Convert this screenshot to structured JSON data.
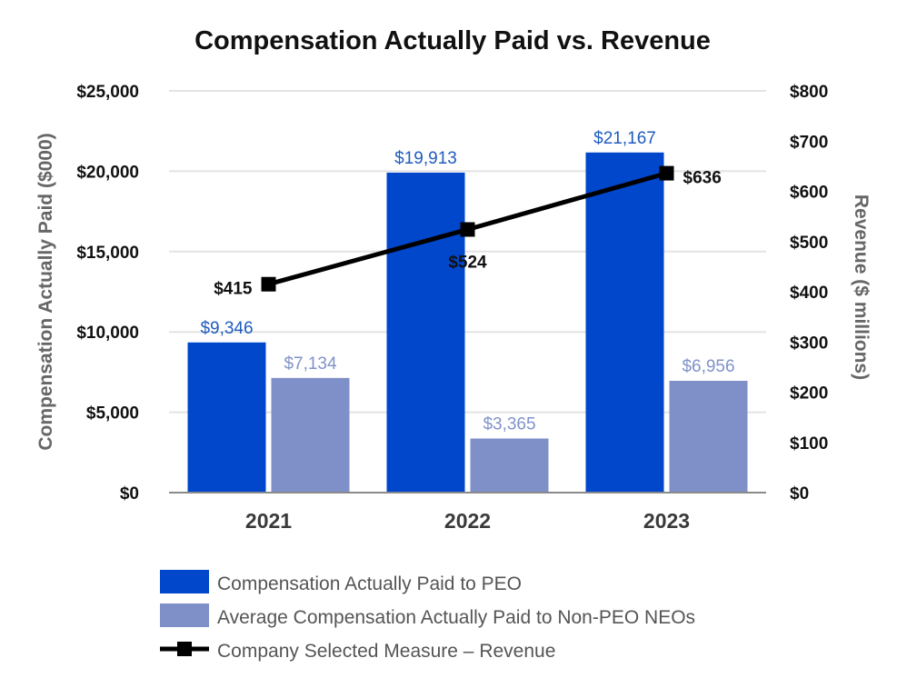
{
  "chart_data": {
    "type": "bar",
    "title": "Compensation Actually Paid vs. Revenue",
    "categories": [
      "2021",
      "2022",
      "2023"
    ],
    "ylabel": "Compensation Actually Paid ($000)",
    "ylabel_right": "Revenue ($ millions)",
    "ylim": [
      0,
      25000
    ],
    "ylim_right": [
      0,
      800
    ],
    "yticks": [
      "$0",
      "$5,000",
      "$10,000",
      "$15,000",
      "$20,000",
      "$25,000"
    ],
    "yticks_right": [
      "$0",
      "$100",
      "$200",
      "$300",
      "$400",
      "$500",
      "$600",
      "$700",
      "$800"
    ],
    "series": [
      {
        "name": "Compensation Actually Paid to PEO",
        "type": "bar",
        "axis": "left",
        "color": "#0047cc",
        "label_color": "#1f5cbf",
        "values": [
          9346,
          19913,
          21167
        ],
        "labels": [
          "$9,346",
          "$19,913",
          "$21,167"
        ]
      },
      {
        "name": "Average Compensation Actually Paid to Non-PEO NEOs",
        "type": "bar",
        "axis": "left",
        "color": "#7f8fc8",
        "label_color": "#7f93c8",
        "values": [
          7134,
          3365,
          6956
        ],
        "labels": [
          "$7,134",
          "$3,365",
          "$6,956"
        ]
      },
      {
        "name": "Company Selected Measure – Revenue",
        "type": "line",
        "axis": "right",
        "color": "#000000",
        "values": [
          415,
          524,
          636
        ],
        "labels": [
          "$415",
          "$524",
          "$636"
        ]
      }
    ],
    "legend": "bottom",
    "grid": true
  }
}
